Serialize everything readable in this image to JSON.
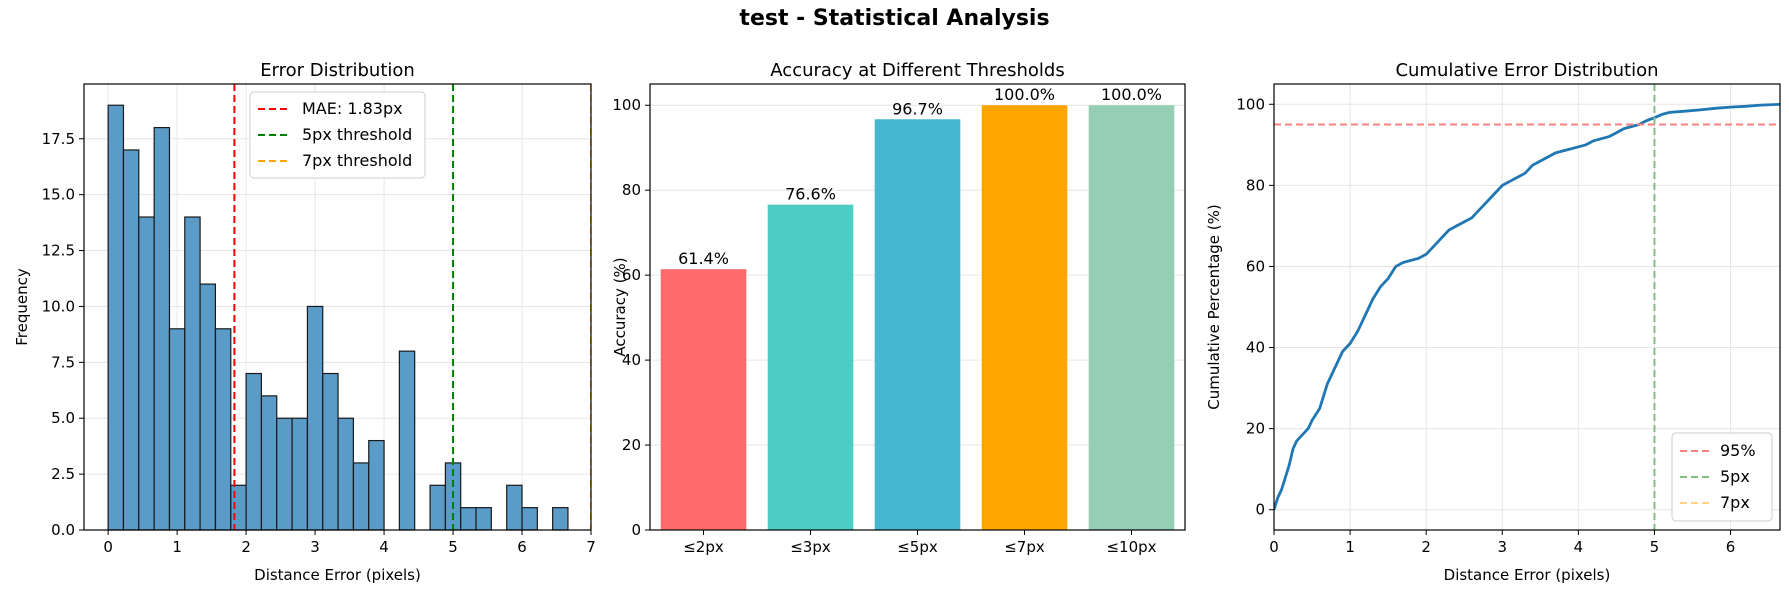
{
  "figure_title": "test - Statistical Analysis",
  "chart_data": [
    {
      "type": "bar",
      "subtype": "histogram",
      "title": "Error Distribution",
      "xlabel": "Distance Error (pixels)",
      "ylabel": "Frequency",
      "xlim": [
        -0.35,
        7.0
      ],
      "ylim": [
        0,
        19.95
      ],
      "xticks": [
        0,
        1,
        2,
        3,
        4,
        5,
        6,
        7
      ],
      "xtick_labels": [
        "0",
        "1",
        "2",
        "3",
        "4",
        "5",
        "6",
        "7"
      ],
      "yticks": [
        0,
        2.5,
        5,
        7.5,
        10,
        12.5,
        15,
        17.5
      ],
      "ytick_labels": [
        "0.0",
        "2.5",
        "5.0",
        "7.5",
        "10.0",
        "12.5",
        "15.0",
        "17.5"
      ],
      "bin_width": 0.222,
      "bin_starts": [
        0.0,
        0.222,
        0.444,
        0.667,
        0.889,
        1.111,
        1.333,
        1.556,
        1.778,
        2.0,
        2.222,
        2.444,
        2.667,
        2.889,
        3.111,
        3.333,
        3.556,
        3.778,
        4.0,
        4.222,
        4.444,
        4.667,
        4.889,
        5.111,
        5.333,
        5.556,
        5.778,
        6.0,
        6.222,
        6.444
      ],
      "values": [
        19,
        17,
        14,
        18,
        9,
        14,
        11,
        9,
        2,
        7,
        6,
        5,
        5,
        10,
        7,
        5,
        3,
        4,
        0,
        8,
        0,
        2,
        3,
        1,
        1,
        0,
        2,
        1,
        0,
        1
      ],
      "bar_color": "#5b9bc8",
      "vlines": [
        {
          "x": 1.83,
          "label": "MAE: 1.83px",
          "color": "#ff0000"
        },
        {
          "x": 5,
          "label": "5px threshold",
          "color": "#008000"
        },
        {
          "x": 7,
          "label": "7px threshold",
          "color": "#ffa500"
        }
      ],
      "legend": "top-center",
      "grid": true
    },
    {
      "type": "bar",
      "title": "Accuracy at Different Thresholds",
      "xlabel": "",
      "ylabel": "Accuracy (%)",
      "ylim": [
        0,
        105
      ],
      "yticks": [
        0,
        20,
        40,
        60,
        80,
        100
      ],
      "ytick_labels": [
        "0",
        "20",
        "40",
        "60",
        "80",
        "100"
      ],
      "categories": [
        "≤2px",
        "≤3px",
        "≤5px",
        "≤7px",
        "≤10px"
      ],
      "values": [
        61.4,
        76.6,
        96.7,
        100.0,
        100.0
      ],
      "value_labels": [
        "61.4%",
        "76.6%",
        "96.7%",
        "100.0%",
        "100.0%"
      ],
      "colors": [
        "#ff6b6b",
        "#4ecdc4",
        "#45b7d1",
        "#ffa500",
        "#96ceb4"
      ],
      "grid": true
    },
    {
      "type": "line",
      "title": "Cumulative Error Distribution",
      "xlabel": "Distance Error (pixels)",
      "ylabel": "Cumulative Percentage (%)",
      "xlim": [
        0,
        6.65
      ],
      "ylim": [
        -5,
        105
      ],
      "xticks": [
        0,
        1,
        2,
        3,
        4,
        5,
        6
      ],
      "xtick_labels": [
        "0",
        "1",
        "2",
        "3",
        "4",
        "5",
        "6"
      ],
      "yticks": [
        0,
        20,
        40,
        60,
        80,
        100
      ],
      "ytick_labels": [
        "0",
        "20",
        "40",
        "60",
        "80",
        "100"
      ],
      "series": [
        {
          "color": "#1f77b4",
          "x": [
            0,
            0.05,
            0.1,
            0.15,
            0.2,
            0.25,
            0.3,
            0.35,
            0.45,
            0.5,
            0.6,
            0.65,
            0.7,
            0.75,
            0.8,
            0.85,
            0.9,
            1.0,
            1.1,
            1.2,
            1.3,
            1.4,
            1.5,
            1.6,
            1.7,
            1.8,
            1.9,
            2.0,
            2.1,
            2.2,
            2.3,
            2.4,
            2.5,
            2.6,
            2.7,
            2.8,
            2.9,
            3.0,
            3.1,
            3.2,
            3.3,
            3.4,
            3.6,
            3.7,
            3.8,
            3.9,
            4.0,
            4.1,
            4.2,
            4.3,
            4.4,
            4.5,
            4.6,
            4.8,
            4.9,
            5.0,
            5.1,
            5.2,
            5.4,
            5.6,
            5.8,
            6.0,
            6.2,
            6.4,
            6.65
          ],
          "y": [
            0,
            3,
            5,
            8,
            11,
            15,
            17,
            18,
            20,
            22,
            25,
            28,
            31,
            33,
            35,
            37,
            39,
            41,
            44,
            48,
            52,
            55,
            57,
            60,
            61,
            61.5,
            62,
            63,
            65,
            67,
            69,
            70,
            71,
            72,
            74,
            76,
            78,
            80,
            81,
            82,
            83,
            85,
            87,
            88,
            88.5,
            89,
            89.5,
            90,
            91,
            91.5,
            92,
            93,
            94,
            95,
            96,
            96.7,
            97.5,
            98,
            98.3,
            98.6,
            99,
            99.3,
            99.5,
            99.8,
            100
          ]
        }
      ],
      "hlines": [
        {
          "y": 95,
          "label": "95%",
          "color": "#ff8080"
        }
      ],
      "vlines": [
        {
          "x": 5,
          "label": "5px",
          "color": "#80c080"
        },
        {
          "x": 7,
          "label": "7px",
          "color": "#ffd480"
        }
      ],
      "legend": "bottom-right",
      "grid": true
    }
  ]
}
